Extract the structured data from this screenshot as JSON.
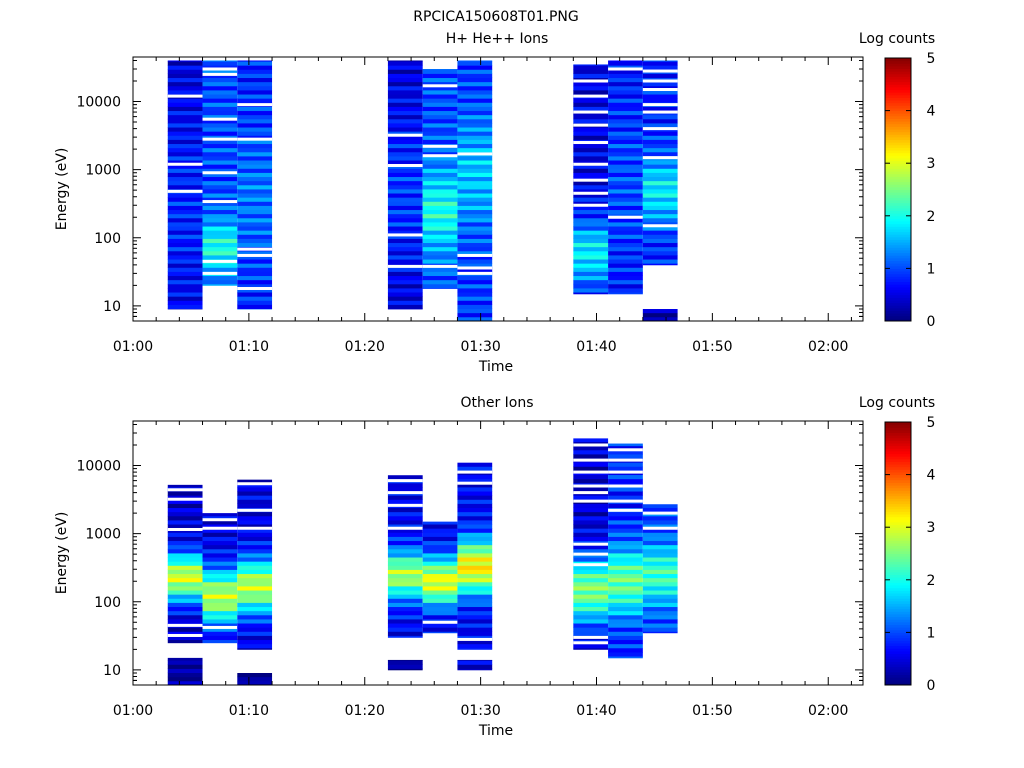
{
  "figure": {
    "title": "RPCICA150608T01.PNG"
  },
  "chart_data": [
    {
      "type": "heatmap",
      "title": "H+ He++ Ions",
      "xlabel": "Time",
      "ylabel": "Energy (eV)",
      "y_scale": "log",
      "ylim": [
        6,
        45000
      ],
      "xlim": [
        "01:00",
        "02:03"
      ],
      "x_ticks": [
        "01:00",
        "01:10",
        "01:20",
        "01:30",
        "01:40",
        "01:50",
        "02:00"
      ],
      "y_ticks": [
        "10",
        "100",
        "1000",
        "10000"
      ],
      "colorbar": {
        "label": "Log counts",
        "range": [
          0,
          5
        ],
        "ticks": [
          "0",
          "1",
          "2",
          "3",
          "4",
          "5"
        ]
      },
      "columns": [
        {
          "t_start": "01:03",
          "t_end": "01:06",
          "e_min": 9,
          "e_max": 40000,
          "level": 0.4,
          "peak_level": 0.8,
          "peak_energy": 300,
          "spread": 1.5,
          "gaps": [
            480,
            1200,
            12000
          ]
        },
        {
          "t_start": "01:06",
          "t_end": "01:09",
          "e_min": 20,
          "e_max": 40000,
          "level": 1.0,
          "peak_level": 2.0,
          "peak_energy": 70,
          "spread": 0.4,
          "gaps": [
            30,
            45,
            340,
            900,
            2800,
            5500,
            25000,
            30000
          ]
        },
        {
          "t_start": "01:09",
          "t_end": "01:12",
          "e_min": 9,
          "e_max": 40000,
          "level": 0.8,
          "peak_level": 1.2,
          "peak_energy": 400,
          "spread": 1.0,
          "gaps": [
            18,
            55,
            68,
            2800,
            9000
          ]
        },
        {
          "t_start": "01:22",
          "t_end": "01:25",
          "e_min": 9,
          "e_max": 40000,
          "level": 0.4,
          "peak_level": 0.9,
          "peak_energy": 500,
          "spread": 1.2,
          "gaps": [
            38,
            110,
            1150,
            3200
          ]
        },
        {
          "t_start": "01:25",
          "t_end": "01:28",
          "e_min": 18,
          "e_max": 30000,
          "level": 1.0,
          "peak_level": 2.0,
          "peak_energy": 250,
          "spread": 0.6,
          "gaps": [
            38,
            1600,
            2200,
            17000
          ]
        },
        {
          "t_start": "01:28",
          "t_end": "01:31",
          "e_min": 6,
          "e_max": 40000,
          "level": 0.9,
          "peak_level": 1.6,
          "peak_energy": 900,
          "spread": 0.8,
          "gaps": [
            30,
            36,
            55,
            1700
          ]
        },
        {
          "t_start": "01:38",
          "t_end": "01:41",
          "e_min": 15,
          "e_max": 35000,
          "level": 0.5,
          "peak_level": 1.8,
          "peak_energy": 60,
          "spread": 0.5,
          "gaps": [
            300,
            450,
            700,
            1200,
            2500,
            4500,
            7000,
            12000,
            20000
          ]
        },
        {
          "t_start": "01:41",
          "t_end": "01:44",
          "e_min": 15,
          "e_max": 40000,
          "level": 0.7,
          "peak_level": 1.0,
          "peak_energy": 600,
          "spread": 1.2,
          "gaps": [
            200,
            30000
          ]
        },
        {
          "t_start": "01:44",
          "t_end": "01:47",
          "e_min": 40,
          "e_max": 40000,
          "level": 0.8,
          "peak_level": 1.8,
          "peak_energy": 500,
          "spread": 0.5,
          "gaps": [
            150,
            1500,
            4000,
            7000,
            9000,
            15000,
            20000,
            28000
          ]
        },
        {
          "t_start": "01:44",
          "t_end": "01:47",
          "e_min": 6,
          "e_max": 9,
          "level": 0.2,
          "peak_level": 0.2,
          "peak_energy": 8,
          "spread": 1.0,
          "gaps": []
        }
      ]
    },
    {
      "type": "heatmap",
      "title": "Other Ions",
      "xlabel": "Time",
      "ylabel": "Energy (eV)",
      "y_scale": "log",
      "ylim": [
        6,
        45000
      ],
      "xlim": [
        "01:00",
        "02:03"
      ],
      "x_ticks": [
        "01:00",
        "01:10",
        "01:20",
        "01:30",
        "01:40",
        "01:50",
        "02:00"
      ],
      "y_ticks": [
        "10",
        "100",
        "1000",
        "10000"
      ],
      "colorbar": {
        "label": "Log counts",
        "range": [
          0,
          5
        ],
        "ticks": [
          "0",
          "1",
          "2",
          "3",
          "4",
          "5"
        ]
      },
      "columns": [
        {
          "t_start": "01:03",
          "t_end": "01:06",
          "e_min": 25,
          "e_max": 5200,
          "level": 0.4,
          "peak_level": 2.9,
          "peak_energy": 230,
          "spread": 0.35,
          "gaps": [
            32,
            45,
            1150,
            3200,
            4400
          ]
        },
        {
          "t_start": "01:03",
          "t_end": "01:06",
          "e_min": 6,
          "e_max": 15,
          "level": 0.1,
          "peak_level": 0.1,
          "peak_energy": 10,
          "spread": 1.0,
          "gaps": []
        },
        {
          "t_start": "01:06",
          "t_end": "01:09",
          "e_min": 25,
          "e_max": 2000,
          "level": 0.5,
          "peak_level": 2.8,
          "peak_energy": 120,
          "spread": 0.4,
          "gaps": [
            42,
            1200,
            1600
          ]
        },
        {
          "t_start": "01:09",
          "t_end": "01:12",
          "e_min": 20,
          "e_max": 6200,
          "level": 0.5,
          "peak_level": 2.8,
          "peak_energy": 170,
          "spread": 0.4,
          "gaps": [
            1200,
            2200,
            5400
          ]
        },
        {
          "t_start": "01:09",
          "t_end": "01:12",
          "e_min": 6,
          "e_max": 9,
          "level": 0.1,
          "peak_level": 0.1,
          "peak_energy": 8,
          "spread": 1.0,
          "gaps": []
        },
        {
          "t_start": "01:22",
          "t_end": "01:25",
          "e_min": 30,
          "e_max": 7200,
          "level": 0.6,
          "peak_level": 2.7,
          "peak_energy": 250,
          "spread": 0.35,
          "gaps": [
            1200,
            2600,
            4000,
            6000
          ]
        },
        {
          "t_start": "01:22",
          "t_end": "01:25",
          "e_min": 10,
          "e_max": 14,
          "level": 0.1,
          "peak_level": 0.1,
          "peak_energy": 12,
          "spread": 1.0,
          "gaps": []
        },
        {
          "t_start": "01:25",
          "t_end": "01:28",
          "e_min": 35,
          "e_max": 1500,
          "level": 0.6,
          "peak_level": 3.0,
          "peak_energy": 200,
          "spread": 0.35,
          "gaps": [
            50
          ]
        },
        {
          "t_start": "01:28",
          "t_end": "01:31",
          "e_min": 20,
          "e_max": 11000,
          "level": 0.6,
          "peak_level": 3.2,
          "peak_energy": 330,
          "spread": 0.4,
          "gaps": [
            8000,
            5500,
            28
          ]
        },
        {
          "t_start": "01:28",
          "t_end": "01:31",
          "e_min": 10,
          "e_max": 14,
          "level": 0.4,
          "peak_level": 0.4,
          "peak_energy": 12,
          "spread": 1.0,
          "gaps": []
        },
        {
          "t_start": "01:38",
          "t_end": "01:41",
          "e_min": 20,
          "e_max": 25000,
          "level": 0.4,
          "peak_level": 2.5,
          "peak_energy": 150,
          "spread": 0.5,
          "gaps": [
            25,
            30,
            350,
            500,
            700,
            3000,
            4000,
            5000,
            8000,
            12000,
            20000
          ]
        },
        {
          "t_start": "01:41",
          "t_end": "01:44",
          "e_min": 15,
          "e_max": 21000,
          "level": 0.8,
          "peak_level": 2.4,
          "peak_energy": 200,
          "spread": 0.5,
          "gaps": [
            2200,
            3000,
            5000,
            8000,
            12000,
            17000
          ]
        },
        {
          "t_start": "01:44",
          "t_end": "01:47",
          "e_min": 35,
          "e_max": 2700,
          "level": 1.0,
          "peak_level": 2.2,
          "peak_energy": 250,
          "spread": 0.4,
          "gaps": [
            1200,
            2000
          ]
        }
      ]
    }
  ]
}
